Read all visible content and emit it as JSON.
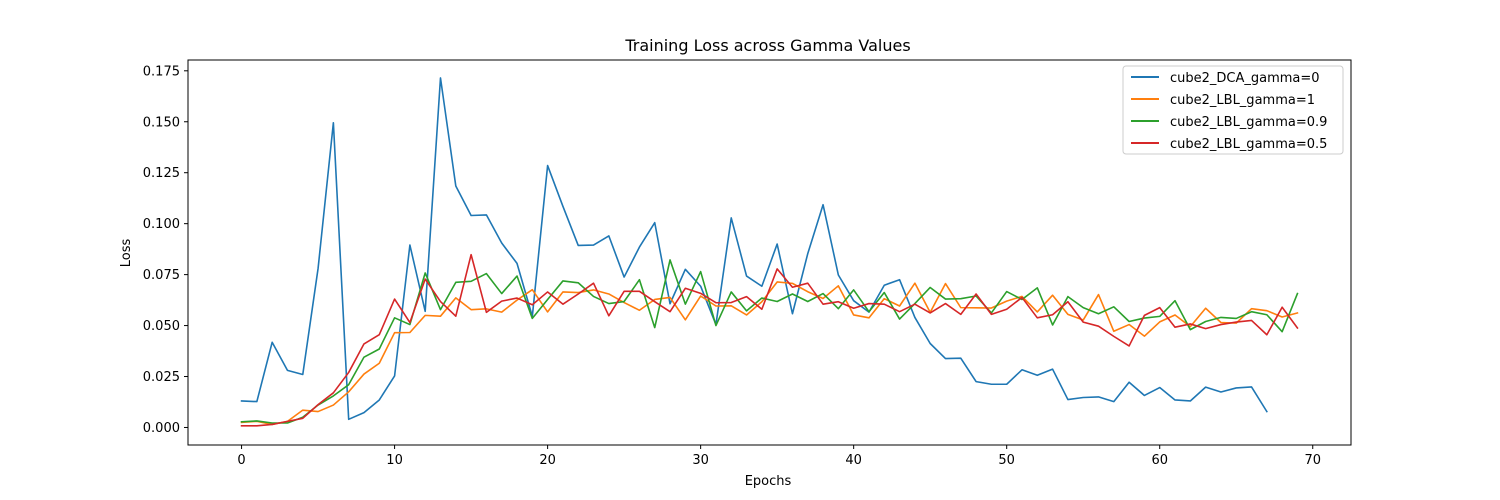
{
  "chart_data": {
    "type": "line",
    "title": "Training Loss across Gamma Values",
    "xlabel": "Epochs",
    "ylabel": "Loss",
    "xlim": [
      -3.5,
      72.5
    ],
    "ylim": [
      -0.0086,
      0.1803
    ],
    "xticks": [
      0,
      10,
      20,
      30,
      40,
      50,
      60,
      70
    ],
    "yticks": [
      0.0,
      0.025,
      0.05,
      0.075,
      0.1,
      0.125,
      0.15,
      0.175
    ],
    "ytick_labels": [
      "0.000",
      "0.025",
      "0.050",
      "0.075",
      "0.100",
      "0.125",
      "0.150",
      "0.175"
    ],
    "grid": false,
    "legend_position": "top-right",
    "series": [
      {
        "name": "cube2_DCA_gamma=0",
        "color": "#1f77b4",
        "values": [
          0.013,
          0.0127,
          0.0418,
          0.028,
          0.026,
          0.078,
          0.1495,
          0.004,
          0.0073,
          0.0135,
          0.0253,
          0.0895,
          0.057,
          0.1715,
          0.1185,
          0.104,
          0.1043,
          0.0905,
          0.0805,
          0.0545,
          0.1285,
          0.1085,
          0.0893,
          0.0895,
          0.094,
          0.0738,
          0.0885,
          0.1005,
          0.0607,
          0.0776,
          0.0693,
          0.0505,
          0.1028,
          0.0743,
          0.0693,
          0.09,
          0.0558,
          0.0853,
          0.1093,
          0.0748,
          0.0622,
          0.0566,
          0.0698,
          0.0725,
          0.054,
          0.0412,
          0.0338,
          0.034,
          0.0225,
          0.0212,
          0.0212,
          0.0283,
          0.0256,
          0.0286,
          0.0137,
          0.0147,
          0.015,
          0.0127,
          0.0222,
          0.0157,
          0.0196,
          0.0135,
          0.013,
          0.0198,
          0.0174,
          0.0194,
          0.0199,
          0.0078
        ]
      },
      {
        "name": "cube2_LBL_gamma=1",
        "color": "#ff7f0e",
        "values": [
          0.0025,
          0.003,
          0.0015,
          0.003,
          0.0085,
          0.0078,
          0.011,
          0.0175,
          0.0262,
          0.0315,
          0.0465,
          0.0466,
          0.055,
          0.0546,
          0.0636,
          0.0578,
          0.0582,
          0.0566,
          0.0625,
          0.0676,
          0.0567,
          0.0665,
          0.0662,
          0.0675,
          0.0655,
          0.0613,
          0.0575,
          0.0628,
          0.0638,
          0.0528,
          0.0645,
          0.0596,
          0.0597,
          0.0552,
          0.0617,
          0.0714,
          0.0707,
          0.0666,
          0.0633,
          0.0695,
          0.0552,
          0.0538,
          0.0632,
          0.0596,
          0.0708,
          0.0565,
          0.0706,
          0.0588,
          0.0587,
          0.0586,
          0.062,
          0.0643,
          0.0567,
          0.0649,
          0.0555,
          0.0527,
          0.0652,
          0.0472,
          0.0505,
          0.0448,
          0.0518,
          0.0552,
          0.0495,
          0.0585,
          0.0515,
          0.0512,
          0.0583,
          0.0573,
          0.0542,
          0.0562
        ]
      },
      {
        "name": "cube2_LBL_gamma=0.9",
        "color": "#2ca02c",
        "values": [
          0.0028,
          0.0032,
          0.0022,
          0.0022,
          0.005,
          0.011,
          0.0155,
          0.021,
          0.0345,
          0.0385,
          0.0538,
          0.0505,
          0.0758,
          0.0578,
          0.0712,
          0.0717,
          0.0755,
          0.0657,
          0.0743,
          0.0535,
          0.0628,
          0.0719,
          0.071,
          0.0643,
          0.0608,
          0.0618,
          0.0725,
          0.049,
          0.0822,
          0.0605,
          0.0765,
          0.05,
          0.0665,
          0.0572,
          0.0635,
          0.0618,
          0.0655,
          0.0618,
          0.0657,
          0.0583,
          0.0675,
          0.0568,
          0.0662,
          0.0532,
          0.0608,
          0.0687,
          0.063,
          0.0632,
          0.0645,
          0.0562,
          0.0667,
          0.0628,
          0.0685,
          0.0503,
          0.0642,
          0.0588,
          0.0558,
          0.0592,
          0.052,
          0.0537,
          0.0545,
          0.0622,
          0.048,
          0.052,
          0.054,
          0.0535,
          0.0568,
          0.0553,
          0.047,
          0.0657
        ]
      },
      {
        "name": "cube2_LBL_gamma=0.5",
        "color": "#d62728",
        "values": [
          0.0008,
          0.0008,
          0.0015,
          0.003,
          0.0045,
          0.0112,
          0.017,
          0.027,
          0.041,
          0.0455,
          0.063,
          0.0515,
          0.0728,
          0.0618,
          0.0546,
          0.0848,
          0.0565,
          0.062,
          0.0635,
          0.0602,
          0.0665,
          0.0605,
          0.0655,
          0.0708,
          0.0548,
          0.0668,
          0.0668,
          0.0617,
          0.0568,
          0.0683,
          0.0658,
          0.0612,
          0.0613,
          0.0642,
          0.058,
          0.0778,
          0.0688,
          0.0708,
          0.0605,
          0.0617,
          0.0585,
          0.0608,
          0.0605,
          0.0568,
          0.0605,
          0.0562,
          0.0608,
          0.0555,
          0.0655,
          0.0555,
          0.058,
          0.0638,
          0.0538,
          0.0553,
          0.0617,
          0.0517,
          0.0497,
          0.0447,
          0.04,
          0.055,
          0.0588,
          0.0492,
          0.0508,
          0.0485,
          0.0505,
          0.0517,
          0.0525,
          0.0455,
          0.059,
          0.0488
        ]
      }
    ]
  }
}
